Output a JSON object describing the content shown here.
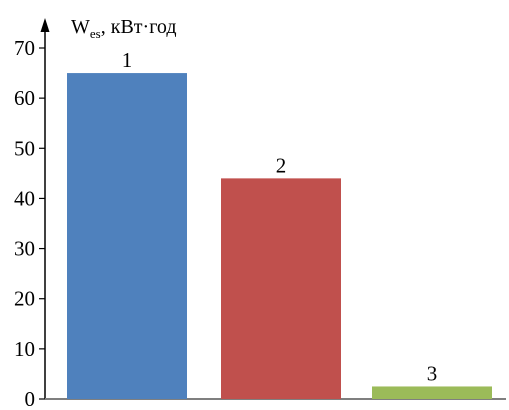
{
  "chart_data": {
    "type": "bar",
    "ylabel_main": "W",
    "ylabel_sub": "es",
    "ylabel_unit": ", кВт·год",
    "categories": [
      "1",
      "2",
      "3"
    ],
    "values": [
      65,
      44,
      2.5
    ],
    "colors": [
      "#4f81bd",
      "#c0504d",
      "#9bbb59"
    ],
    "ylim": [
      0,
      70
    ],
    "yticks": [
      0,
      10,
      20,
      30,
      40,
      50,
      60,
      70
    ],
    "grid": false,
    "legend": "none"
  }
}
